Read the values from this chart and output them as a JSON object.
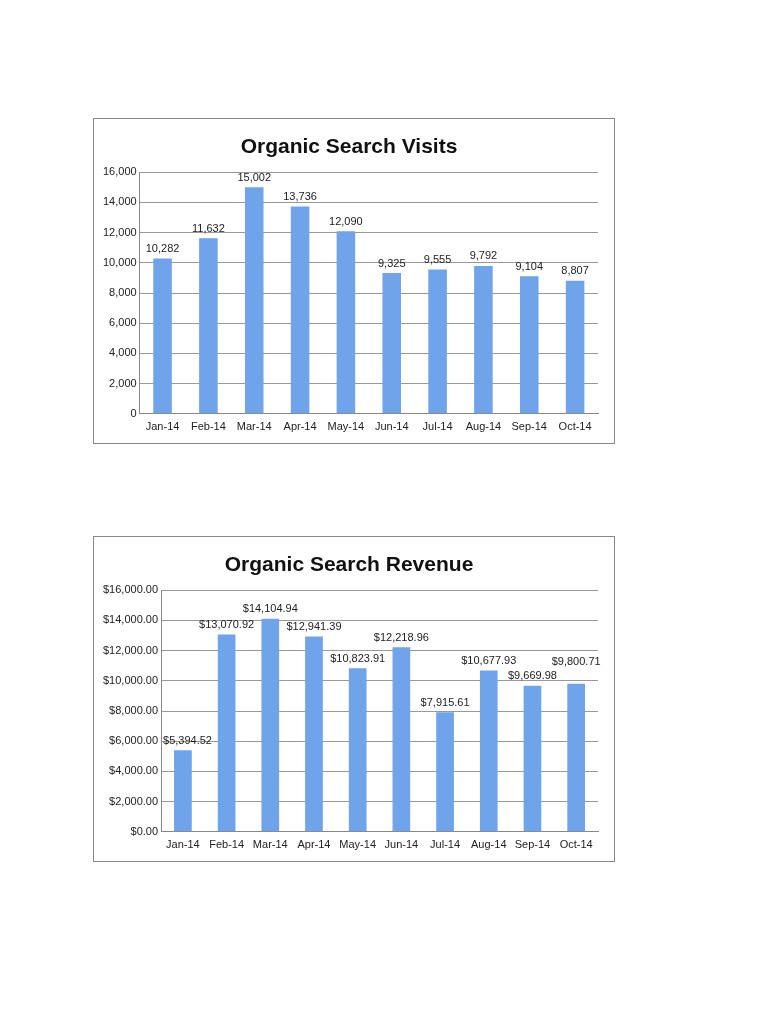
{
  "chart_data": [
    {
      "type": "bar",
      "title": "Organic Search Visits",
      "categories": [
        "Jan-14",
        "Feb-14",
        "Mar-14",
        "Apr-14",
        "May-14",
        "Jun-14",
        "Jul-14",
        "Aug-14",
        "Sep-14",
        "Oct-14"
      ],
      "values": [
        10282,
        11632,
        15002,
        13736,
        12090,
        9325,
        9555,
        9792,
        9104,
        8807
      ],
      "value_labels": [
        "10,282",
        "11,632",
        "15,002",
        "13,736",
        "12,090",
        "9,325",
        "9,555",
        "9,792",
        "9,104",
        "8,807"
      ],
      "color": "#6fa3ea",
      "ylim": [
        0,
        16000
      ],
      "yticks": [
        {
          "value": 0,
          "label": "0"
        },
        {
          "value": 2000,
          "label": "2,000"
        },
        {
          "value": 4000,
          "label": "4,000"
        },
        {
          "value": 6000,
          "label": "6,000"
        },
        {
          "value": 8000,
          "label": "8,000"
        },
        {
          "value": 10000,
          "label": "10,000"
        },
        {
          "value": 12000,
          "label": "12,000"
        },
        {
          "value": 14000,
          "label": "14,000"
        },
        {
          "value": 16000,
          "label": "16,000"
        }
      ],
      "grid": "y",
      "legend": false
    },
    {
      "type": "bar",
      "title": "Organic Search Revenue",
      "categories": [
        "Jan-14",
        "Feb-14",
        "Mar-14",
        "Apr-14",
        "May-14",
        "Jun-14",
        "Jul-14",
        "Aug-14",
        "Sep-14",
        "Oct-14"
      ],
      "values": [
        5394.52,
        13070.92,
        14104.94,
        12941.39,
        10823.91,
        12218.96,
        7915.61,
        10677.93,
        9669.98,
        9800.71
      ],
      "value_labels": [
        "$5,394.52",
        "$13,070.92",
        "$14,104.94",
        "$12,941.39",
        "$10,823.91",
        "$12,218.96",
        "$7,915.61",
        "$10,677.93",
        "$9,669.98",
        "$9,800.71"
      ],
      "color": "#6fa3ea",
      "ylim": [
        0,
        16000
      ],
      "yticks": [
        {
          "value": 0,
          "label": "$0.00"
        },
        {
          "value": 2000,
          "label": "$2,000.00"
        },
        {
          "value": 4000,
          "label": "$4,000.00"
        },
        {
          "value": 6000,
          "label": "$6,000.00"
        },
        {
          "value": 8000,
          "label": "$8,000.00"
        },
        {
          "value": 10000,
          "label": "$10,000.00"
        },
        {
          "value": 12000,
          "label": "$12,000.00"
        },
        {
          "value": 14000,
          "label": "$14,000.00"
        },
        {
          "value": 16000,
          "label": "$16,000.00"
        }
      ],
      "grid": "y",
      "legend": false
    }
  ]
}
